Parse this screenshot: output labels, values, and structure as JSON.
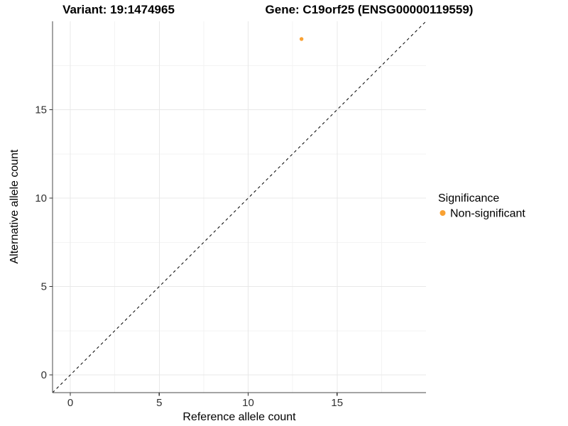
{
  "titles": {
    "left": "Variant: 19:1474965",
    "right": "Gene: C19orf25 (ENSG00000119559)"
  },
  "chart_data": {
    "type": "scatter",
    "title_left": "Variant: 19:1474965",
    "title_right": "Gene: C19orf25 (ENSG00000119559)",
    "xlabel": "Reference allele count",
    "ylabel": "Alternative allele count",
    "xlim": [
      -1,
      20
    ],
    "ylim": [
      -1,
      20
    ],
    "x_ticks": [
      0,
      5,
      10,
      15
    ],
    "y_ticks": [
      0,
      5,
      10,
      15
    ],
    "x_minor_ticks": [
      2.5,
      7.5,
      12.5,
      17.5
    ],
    "y_minor_ticks": [
      2.5,
      7.5,
      12.5,
      17.5
    ],
    "grid": true,
    "points": [
      {
        "x": 13,
        "y": 19,
        "series": "Non-significant"
      }
    ],
    "reference_line": {
      "type": "identity",
      "slope": 1,
      "intercept": 0,
      "style": "dashed",
      "color": "#000000"
    },
    "legend": {
      "title": "Significance",
      "position": "right",
      "entries": [
        {
          "label": "Non-significant",
          "color": "#F9A132"
        }
      ]
    },
    "colors": {
      "point": "#F9A132",
      "grid_major": "#E8E8E8",
      "grid_minor": "#F3F3F3",
      "axis_line": "#4A4A4A",
      "tick_mark": "#333333",
      "background": "#FFFFFF"
    }
  }
}
